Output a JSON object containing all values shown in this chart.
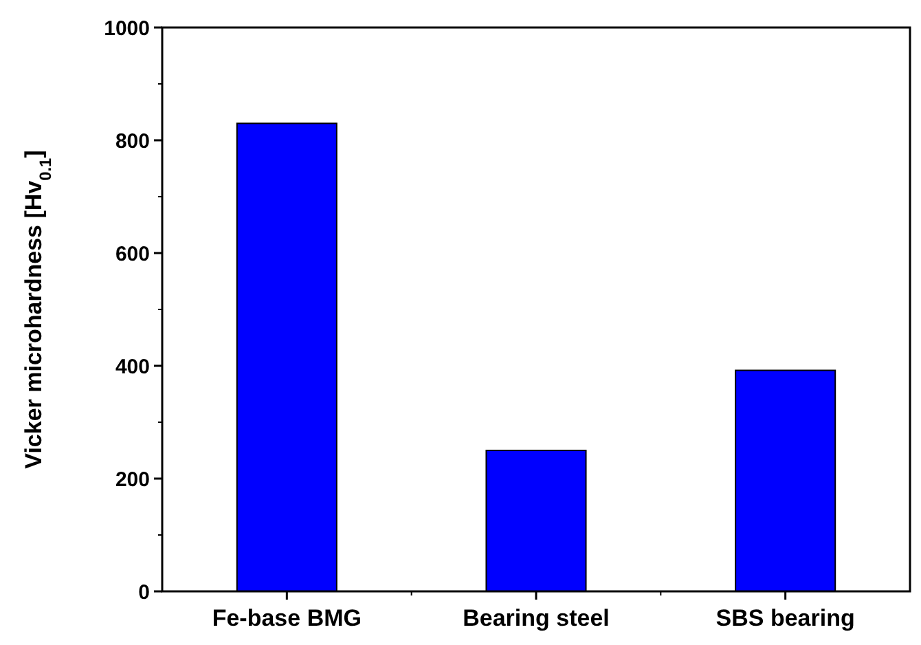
{
  "chart_data": {
    "type": "bar",
    "ylabel": "Vicker microhardness [Hv$_{0.1}$]",
    "categories": [
      "Fe-base BMG",
      "Bearing steel",
      "SBS bearing"
    ],
    "values": [
      830,
      250,
      392
    ],
    "color": "#0000ff",
    "ylim": [
      0,
      1000
    ],
    "yticks": [
      0,
      200,
      400,
      600,
      800,
      1000
    ],
    "grid": false
  }
}
